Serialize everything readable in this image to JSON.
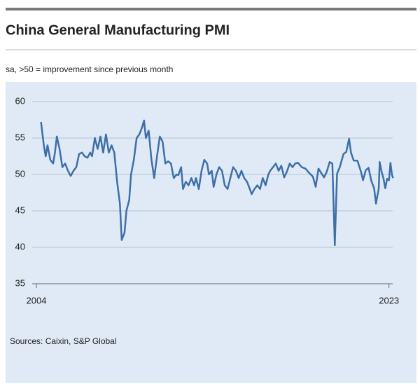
{
  "chart_data": {
    "type": "line",
    "title": "China General Manufacturing PMI",
    "subtitle": "sa, >50 = improvement since previous month",
    "source": "Sources: Caixin, S&P Global",
    "x": [
      2004.25,
      2004.4,
      2004.5,
      2004.6,
      2004.75,
      2004.9,
      2005.0,
      2005.1,
      2005.25,
      2005.4,
      2005.55,
      2005.7,
      2005.85,
      2006.0,
      2006.15,
      2006.3,
      2006.45,
      2006.6,
      2006.75,
      2006.9,
      2007.0,
      2007.15,
      2007.3,
      2007.45,
      2007.6,
      2007.75,
      2007.9,
      2008.05,
      2008.2,
      2008.35,
      2008.5,
      2008.6,
      2008.75,
      2008.85,
      2009.0,
      2009.1,
      2009.25,
      2009.4,
      2009.55,
      2009.7,
      2009.8,
      2009.9,
      2010.05,
      2010.2,
      2010.35,
      2010.5,
      2010.65,
      2010.8,
      2010.95,
      2011.1,
      2011.25,
      2011.4,
      2011.55,
      2011.65,
      2011.8,
      2011.9,
      2012.05,
      2012.2,
      2012.35,
      2012.5,
      2012.6,
      2012.75,
      2012.9,
      2013.05,
      2013.2,
      2013.3,
      2013.45,
      2013.55,
      2013.7,
      2013.85,
      2014.0,
      2014.15,
      2014.3,
      2014.45,
      2014.6,
      2014.75,
      2014.9,
      2015.05,
      2015.2,
      2015.35,
      2015.5,
      2015.6,
      2015.75,
      2015.9,
      2016.05,
      2016.2,
      2016.35,
      2016.5,
      2016.6,
      2016.75,
      2016.9,
      2017.05,
      2017.2,
      2017.35,
      2017.5,
      2017.65,
      2017.8,
      2017.95,
      2018.1,
      2018.3,
      2018.5,
      2018.7,
      2018.9,
      2019.05,
      2019.2,
      2019.35,
      2019.5,
      2019.65,
      2019.8,
      2019.95,
      2020.08,
      2020.2,
      2020.35,
      2020.55,
      2020.7,
      2020.85,
      2020.95,
      2021.1,
      2021.3,
      2021.5,
      2021.6,
      2021.75,
      2021.9,
      2022.05,
      2022.2,
      2022.3,
      2022.45,
      2022.5,
      2022.6,
      2022.7,
      2022.8,
      2022.9,
      2023.0,
      2023.08,
      2023.16,
      2023.22
    ],
    "series": [
      {
        "color": "#3d6fa8",
        "values": [
          57.2,
          54,
          52.5,
          54,
          52,
          51.5,
          53,
          55.2,
          53.5,
          51,
          51.5,
          50.5,
          49.8,
          50.5,
          51,
          52.8,
          53,
          52.5,
          52.3,
          53,
          52.5,
          55,
          53.5,
          55.2,
          53,
          55.5,
          53,
          54,
          53,
          49,
          46,
          41,
          42,
          45,
          46.5,
          50,
          52,
          55,
          55.5,
          56.5,
          57.4,
          55,
          56,
          52,
          49.5,
          52.5,
          55.2,
          54.5,
          51.5,
          51.8,
          51.5,
          49.5,
          50,
          49.9,
          51,
          48,
          49,
          48.5,
          49.5,
          48.5,
          49.5,
          48,
          50.5,
          52,
          51.5,
          50,
          50.5,
          48.3,
          50,
          51,
          50.5,
          48.5,
          48,
          49.5,
          51,
          50.5,
          49.5,
          50.5,
          49.5,
          49,
          48,
          47.3,
          48,
          48.5,
          48,
          49.5,
          48.5,
          50,
          50.5,
          51,
          51.5,
          50.5,
          51.2,
          49.6,
          50.4,
          51.5,
          51,
          51.5,
          51.6,
          51,
          50.8,
          50.2,
          49.7,
          48.3,
          50.8,
          50.2,
          49.6,
          50.4,
          51.7,
          51.5,
          40.3,
          50.1,
          51,
          52.8,
          53.1,
          54.9,
          53,
          51.9,
          51.9,
          50.3,
          49.2,
          50.6,
          50.9,
          49.1,
          48.1,
          46,
          48.1,
          51.7,
          50.4,
          49.5,
          48.1,
          49.4,
          49.2,
          51.6,
          50,
          49.5
        ]
      }
    ],
    "xlim": [
      2004,
      2023.2
    ],
    "xticks": [
      2004,
      2023
    ],
    "ylim": [
      35,
      60
    ],
    "yticks": [
      35,
      40,
      45,
      50,
      55,
      60
    ],
    "grid": true
  }
}
